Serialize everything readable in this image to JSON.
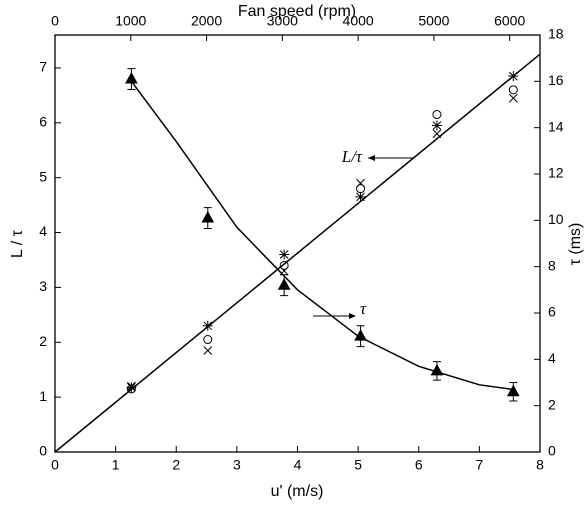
{
  "chart_data": {
    "type": "scatter",
    "x_label": "u' (m/s)",
    "y_label": "L / τ",
    "y2_label": "τ (ms)",
    "x2_label": "Fan speed (rpm)",
    "xlim": [
      0,
      8
    ],
    "xticks": [
      0,
      1,
      2,
      3,
      4,
      5,
      6,
      7,
      8
    ],
    "ylim": [
      0,
      7.6
    ],
    "yticks": [
      0,
      1,
      2,
      3,
      4,
      5,
      6,
      7
    ],
    "y2lim": [
      0,
      18
    ],
    "y2ticks": [
      0,
      2,
      4,
      6,
      8,
      10,
      12,
      14,
      16,
      18
    ],
    "x2lim": [
      0,
      6400
    ],
    "x2ticks": [
      0,
      1000,
      2000,
      3000,
      4000,
      5000,
      6000
    ],
    "x": [
      1.26,
      2.52,
      3.78,
      5.04,
      6.3,
      7.56
    ],
    "series": [
      {
        "marker": "circle",
        "color": "#000000",
        "values": [
          1.15,
          2.05,
          3.4,
          4.8,
          6.15,
          6.6
        ]
      },
      {
        "marker": "cross",
        "color": "#000000",
        "values": [
          1.2,
          1.85,
          3.3,
          4.9,
          5.8,
          6.45
        ]
      },
      {
        "marker": "star",
        "color": "#000000",
        "values": [
          1.18,
          2.3,
          3.6,
          4.65,
          5.95,
          6.85
        ]
      },
      {
        "marker": "triangle",
        "color": "#000000",
        "axis": "y2",
        "values": [
          16.1,
          10.1,
          7.2,
          5.0,
          3.5,
          2.6
        ],
        "errors": [
          0.45,
          0.45,
          0.45,
          0.45,
          0.4,
          0.4
        ]
      }
    ],
    "fits": [
      {
        "color": "#000000",
        "x": [
          0,
          8
        ],
        "values": [
          0,
          7.25
        ]
      },
      {
        "color": "#000000",
        "axis": "y2",
        "x": [
          1.26,
          2,
          3,
          4,
          5,
          6,
          7,
          7.56
        ],
        "values": [
          16.0,
          13.4,
          9.7,
          7.0,
          5.0,
          3.7,
          2.9,
          2.7
        ]
      }
    ],
    "annotations": [
      "L/τ",
      "τ"
    ]
  }
}
